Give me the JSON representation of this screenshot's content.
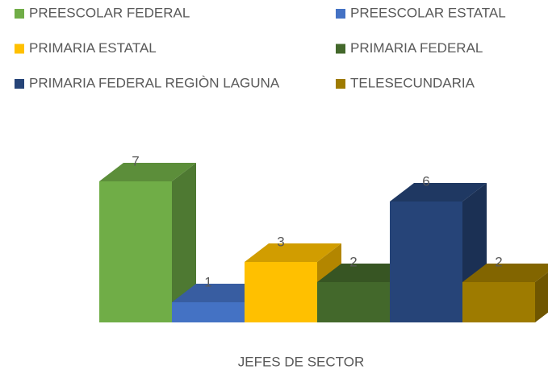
{
  "chart_data": {
    "type": "bar3d",
    "categories": [
      "JEFES DE SECTOR"
    ],
    "series": [
      {
        "name": "PREESCOLAR FEDERAL",
        "color": "#70ad47",
        "values": [
          7
        ]
      },
      {
        "name": "PREESCOLAR ESTATAL",
        "color": "#4472c4",
        "values": [
          1
        ]
      },
      {
        "name": "PRIMARIA ESTATAL",
        "color": "#ffc000",
        "values": [
          3
        ]
      },
      {
        "name": "PRIMARIA FEDERAL",
        "color": "#43682b",
        "values": [
          2
        ]
      },
      {
        "name": "PRIMARIA  FEDERAL REGIÒN LAGUNA",
        "color": "#264478",
        "values": [
          6
        ]
      },
      {
        "name": "TELESECUNDARIA",
        "color": "#9e7b00",
        "values": [
          2
        ]
      }
    ]
  }
}
